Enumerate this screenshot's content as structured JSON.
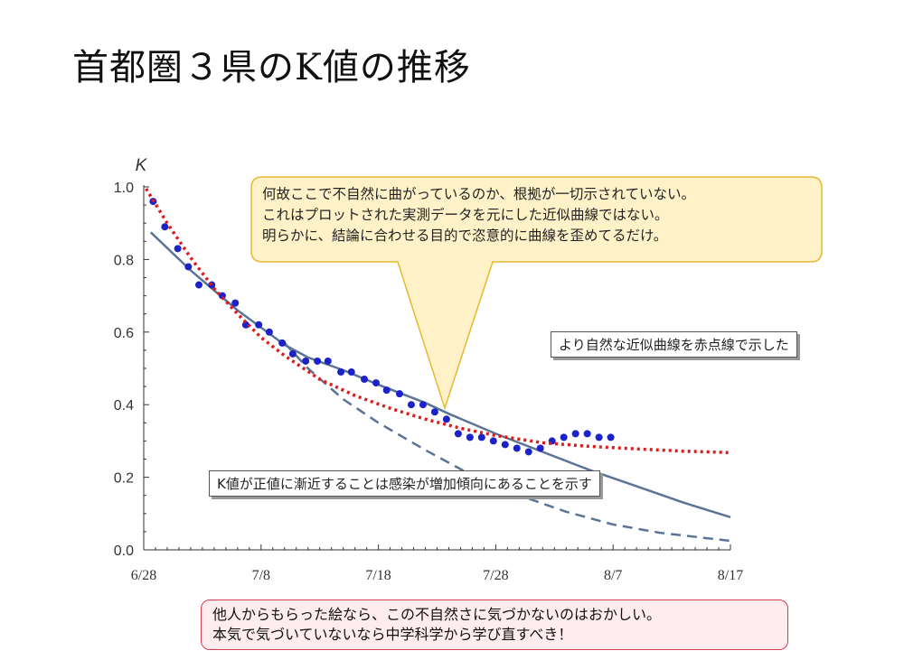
{
  "slide": {
    "title": "首都圏３県のK値の推移"
  },
  "callouts": {
    "critique_lines": [
      "何故ここで不自然に曲がっているのか、根拠が一切示されていない。",
      "これはプロットされた実測データを元にした近似曲線ではない。",
      "明らかに、結論に合わせる目的で恣意的に曲線を歪めてるだけ。"
    ],
    "red_curve_note": "より自然な近似曲線を赤点線で示した",
    "asymptote_note": "K値が正値に漸近することは感染が増加傾向にあることを示す",
    "warning_lines": [
      "他人からもらった絵なら、この不自然さに気づかないのはおかしい。",
      "本気で気づいていないなら中学科学から学び直すべき！"
    ]
  },
  "colors": {
    "dots": "#1a22c8",
    "fit_line": "#5a7396",
    "red_dotted": "#e01a1a",
    "callout_fill": "#fff2c8",
    "callout_border": "#e6b830",
    "warning_border": "#d63b4e"
  },
  "chart_data": {
    "type": "scatter",
    "title": "",
    "ylabel": "K",
    "xlabel": "",
    "x_unit": "days since 6/28",
    "xlim": [
      0,
      50
    ],
    "ylim": [
      0,
      1.0
    ],
    "x_ticks": [
      {
        "x": 0,
        "label": "6/28"
      },
      {
        "x": 10,
        "label": "7/8"
      },
      {
        "x": 20,
        "label": "7/18"
      },
      {
        "x": 30,
        "label": "7/28"
      },
      {
        "x": 40,
        "label": "8/7"
      },
      {
        "x": 50,
        "label": "8/17"
      }
    ],
    "y_ticks": [
      {
        "y": 0.0,
        "label": "0.0"
      },
      {
        "y": 0.2,
        "label": "0.2"
      },
      {
        "y": 0.4,
        "label": "0.4"
      },
      {
        "y": 0.6,
        "label": "0.6"
      },
      {
        "y": 0.8,
        "label": "0.8"
      },
      {
        "y": 1.0,
        "label": "1.0"
      }
    ],
    "series": [
      {
        "name": "",
        "kind": "points",
        "points": [
          [
            0.8,
            0.96
          ],
          [
            1.8,
            0.89
          ],
          [
            2.9,
            0.83
          ],
          [
            3.8,
            0.78
          ],
          [
            4.7,
            0.73
          ],
          [
            5.8,
            0.73
          ],
          [
            6.7,
            0.7
          ],
          [
            7.8,
            0.68
          ],
          [
            8.7,
            0.62
          ],
          [
            9.8,
            0.62
          ],
          [
            10.7,
            0.6
          ],
          [
            11.8,
            0.57
          ],
          [
            12.7,
            0.54
          ],
          [
            13.8,
            0.52
          ],
          [
            14.8,
            0.52
          ],
          [
            15.7,
            0.52
          ],
          [
            16.8,
            0.49
          ],
          [
            17.7,
            0.49
          ],
          [
            18.8,
            0.47
          ],
          [
            19.8,
            0.46
          ],
          [
            20.7,
            0.44
          ],
          [
            21.8,
            0.43
          ],
          [
            22.8,
            0.4
          ],
          [
            23.8,
            0.4
          ],
          [
            24.8,
            0.38
          ],
          [
            25.8,
            0.36
          ],
          [
            26.8,
            0.32
          ],
          [
            27.8,
            0.31
          ],
          [
            28.8,
            0.31
          ],
          [
            29.8,
            0.3
          ],
          [
            30.8,
            0.29
          ],
          [
            31.8,
            0.28
          ],
          [
            32.8,
            0.27
          ],
          [
            33.8,
            0.28
          ],
          [
            34.8,
            0.3
          ],
          [
            35.8,
            0.31
          ],
          [
            36.8,
            0.32
          ],
          [
            37.8,
            0.32
          ],
          [
            38.8,
            0.31
          ],
          [
            39.8,
            0.31
          ]
        ]
      },
      {
        "name": "",
        "kind": "solid-line",
        "points": [
          [
            0.6,
            0.875
          ],
          [
            4,
            0.77
          ],
          [
            8,
            0.66
          ],
          [
            12,
            0.565
          ],
          [
            14,
            0.53
          ],
          [
            17,
            0.495
          ],
          [
            20,
            0.455
          ],
          [
            24,
            0.405
          ],
          [
            26,
            0.375
          ],
          [
            30,
            0.32
          ],
          [
            34,
            0.27
          ],
          [
            38,
            0.22
          ],
          [
            42,
            0.175
          ],
          [
            46,
            0.13
          ],
          [
            50,
            0.09
          ]
        ]
      },
      {
        "name": "",
        "kind": "dashed-line",
        "points": [
          [
            12,
            0.57
          ],
          [
            14,
            0.5
          ],
          [
            17,
            0.415
          ],
          [
            20,
            0.35
          ],
          [
            24,
            0.275
          ],
          [
            28,
            0.205
          ],
          [
            32,
            0.15
          ],
          [
            36,
            0.105
          ],
          [
            40,
            0.07
          ],
          [
            44,
            0.047
          ],
          [
            48,
            0.032
          ],
          [
            50,
            0.025
          ]
        ]
      },
      {
        "name": "",
        "kind": "red-dotted",
        "points": [
          [
            0.2,
            0.995
          ],
          [
            2,
            0.9
          ],
          [
            4,
            0.805
          ],
          [
            6,
            0.72
          ],
          [
            8,
            0.65
          ],
          [
            10,
            0.585
          ],
          [
            12,
            0.535
          ],
          [
            15,
            0.47
          ],
          [
            18,
            0.425
          ],
          [
            21,
            0.39
          ],
          [
            24,
            0.36
          ],
          [
            27,
            0.335
          ],
          [
            30,
            0.315
          ],
          [
            34,
            0.295
          ],
          [
            38,
            0.285
          ],
          [
            42,
            0.278
          ],
          [
            46,
            0.272
          ],
          [
            50,
            0.268
          ]
        ]
      }
    ]
  }
}
